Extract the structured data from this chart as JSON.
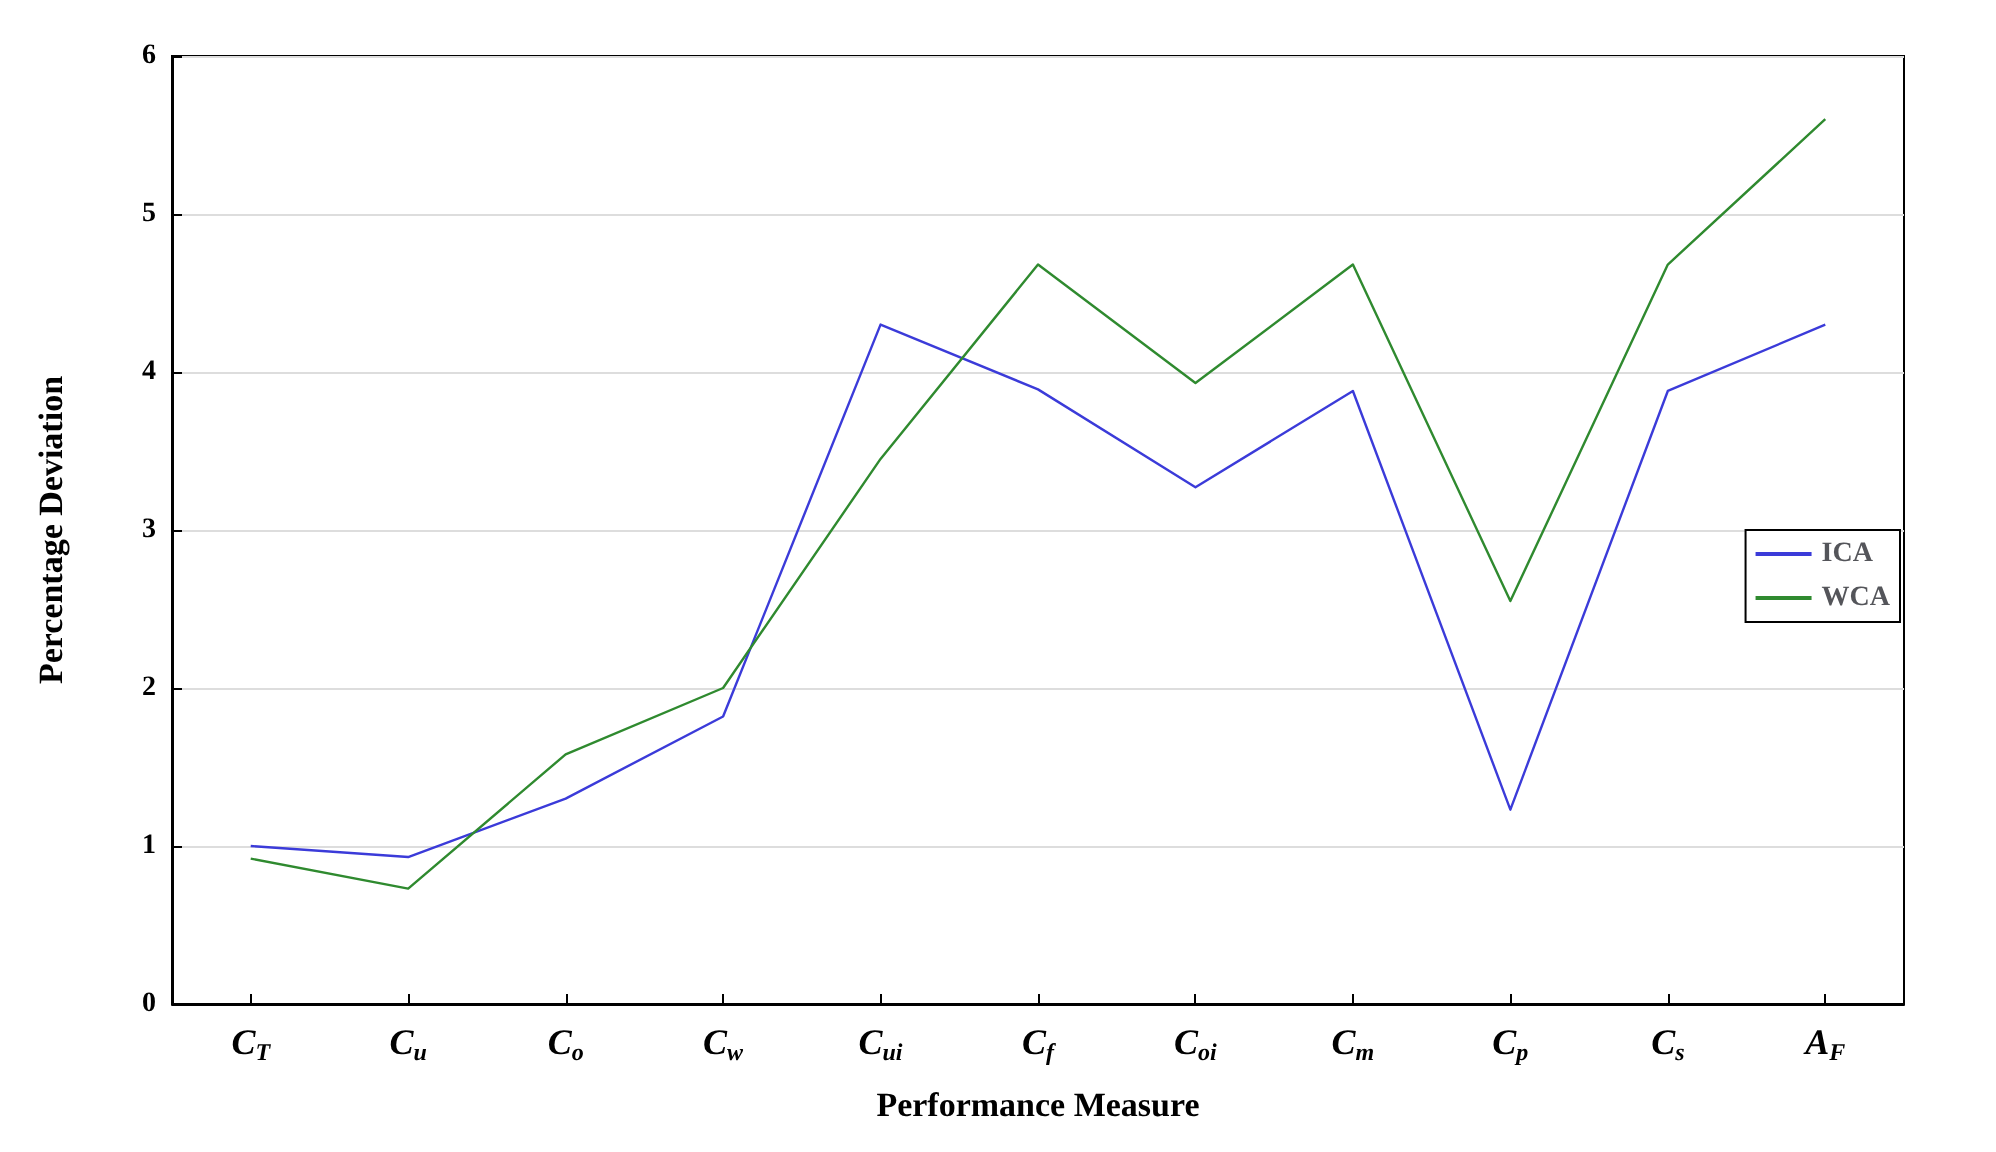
{
  "chart_data": {
    "type": "line",
    "xlabel": "Performance Measure",
    "ylabel": "Percentage Deviation",
    "categories": [
      "C$_{T}$",
      "C$_{u}$",
      "C$_{o}$",
      "C$_{w}$",
      "C$_{ui}$",
      "C$_{f}$",
      "C$_{oi}$",
      "C$_{m}$",
      "C$_{p}$",
      "C$_{s}$",
      "A$_{F}$"
    ],
    "series": [
      {
        "name": "ICA",
        "color": "#3b3bd9",
        "values": [
          1.0,
          0.93,
          1.3,
          1.82,
          4.3,
          3.89,
          3.27,
          3.88,
          1.23,
          3.88,
          4.3
        ]
      },
      {
        "name": "WCA",
        "color": "#2f8a2f",
        "values": [
          0.92,
          0.73,
          1.58,
          2.0,
          3.45,
          4.68,
          3.93,
          4.68,
          2.55,
          4.68,
          5.6
        ]
      }
    ],
    "ylim": [
      0,
      6
    ],
    "yticks": [
      0,
      1,
      2,
      3,
      4,
      5,
      6
    ],
    "grid": "y",
    "legend": "right",
    "marker": "none",
    "line_style": "solid"
  }
}
